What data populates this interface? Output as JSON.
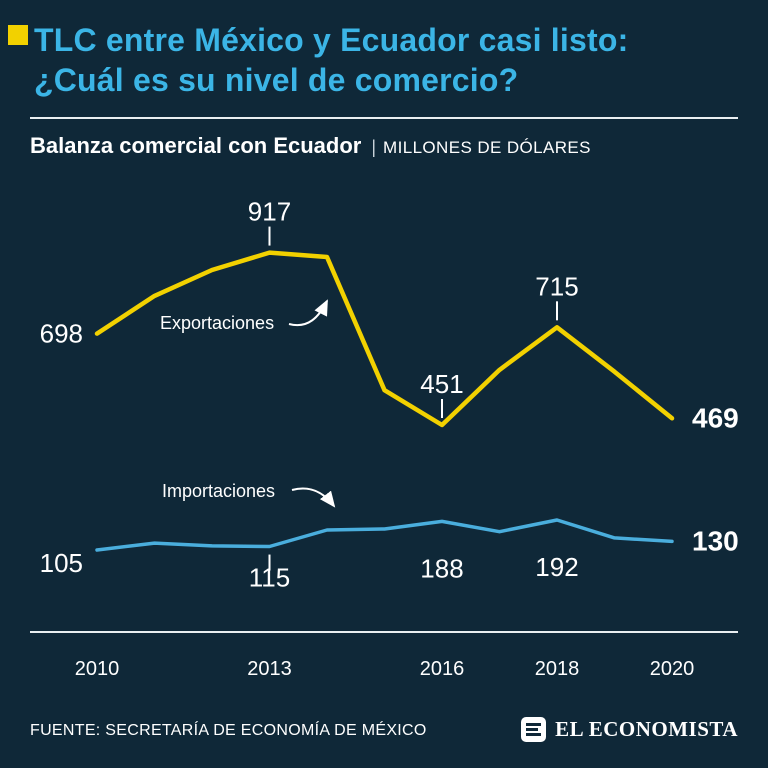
{
  "colors": {
    "background": "#0f2838",
    "title": "#3bb5e6",
    "accent_yellow": "#f2d100",
    "exports_line": "#f2d100",
    "imports_line": "#4aaedd",
    "text": "#ffffff",
    "axis": "#e9eef1"
  },
  "header": {
    "title_line1": "TLC entre México y Ecuador casi listo:",
    "title_line2": "¿Cuál es su nivel de comercio?",
    "subtitle": "Balanza comercial con Ecuador",
    "subtitle_separator": "|",
    "subtitle_units": "MILLONES DE DÓLARES"
  },
  "chart_data": {
    "type": "line",
    "title": "Balanza comercial con Ecuador",
    "units": "MILLONES DE DÓLARES",
    "x": [
      2010,
      2011,
      2012,
      2013,
      2014,
      2015,
      2016,
      2017,
      2018,
      2019,
      2020
    ],
    "series": [
      {
        "name": "Exportaciones",
        "color": "#f2d100",
        "values": [
          698,
          800,
          870,
          917,
          905,
          545,
          451,
          600,
          715,
          595,
          469
        ]
      },
      {
        "name": "Importaciones",
        "color": "#4aaedd",
        "values": [
          105,
          125,
          117,
          115,
          163,
          166,
          188,
          158,
          192,
          140,
          130
        ]
      }
    ],
    "x_ticks": [
      "2010",
      "2013",
      "2016",
      "2018",
      "2020"
    ],
    "x_tick_years": [
      2010,
      2013,
      2016,
      2018,
      2020
    ],
    "point_labels": [
      {
        "series": 0,
        "year": 2010,
        "text": "698",
        "placement": "left",
        "bold": false
      },
      {
        "series": 0,
        "year": 2013,
        "text": "917",
        "placement": "above",
        "bold": false,
        "connector": true
      },
      {
        "series": 0,
        "year": 2016,
        "text": "451",
        "placement": "above",
        "bold": false,
        "connector": true
      },
      {
        "series": 0,
        "year": 2018,
        "text": "715",
        "placement": "above",
        "bold": false,
        "connector": true
      },
      {
        "series": 0,
        "year": 2020,
        "text": "469",
        "placement": "right",
        "bold": true
      },
      {
        "series": 1,
        "year": 2010,
        "text": "105",
        "placement": "left-low",
        "bold": false
      },
      {
        "series": 1,
        "year": 2013,
        "text": "115",
        "placement": "below",
        "bold": false,
        "connector": true
      },
      {
        "series": 1,
        "year": 2016,
        "text": "188",
        "placement": "below-far",
        "bold": false
      },
      {
        "series": 1,
        "year": 2018,
        "text": "192",
        "placement": "below-far",
        "bold": false
      },
      {
        "series": 1,
        "year": 2020,
        "text": "130",
        "placement": "right",
        "bold": true
      }
    ],
    "series_labels": [
      {
        "text": "Exportaciones"
      },
      {
        "text": "Importaciones"
      }
    ],
    "legend_position": "inline-annotations",
    "grid": false
  },
  "footer": {
    "source": "FUENTE: SECRETARÍA DE ECONOMÍA DE MÉXICO",
    "brand": "EL ECONOMISTA"
  }
}
